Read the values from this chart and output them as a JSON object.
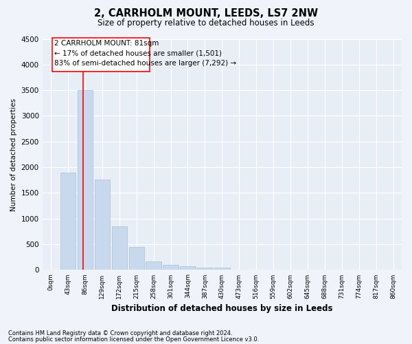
{
  "title1": "2, CARRHOLM MOUNT, LEEDS, LS7 2NW",
  "title2": "Size of property relative to detached houses in Leeds",
  "xlabel": "Distribution of detached houses by size in Leeds",
  "ylabel": "Number of detached properties",
  "bar_color": "#c8d9ee",
  "bar_edge_color": "#a8bfd8",
  "categories": [
    "0sqm",
    "43sqm",
    "86sqm",
    "129sqm",
    "172sqm",
    "215sqm",
    "258sqm",
    "301sqm",
    "344sqm",
    "387sqm",
    "430sqm",
    "473sqm",
    "516sqm",
    "559sqm",
    "602sqm",
    "645sqm",
    "688sqm",
    "731sqm",
    "774sqm",
    "817sqm",
    "860sqm"
  ],
  "values": [
    5,
    1900,
    3500,
    1760,
    855,
    450,
    160,
    100,
    70,
    52,
    42,
    8,
    5,
    4,
    3,
    2,
    2,
    2,
    2,
    2,
    2
  ],
  "ylim": [
    0,
    4500
  ],
  "yticks": [
    0,
    500,
    1000,
    1500,
    2000,
    2500,
    3000,
    3500,
    4000,
    4500
  ],
  "property_line_x": 1.88,
  "annotation_line1": "2 CARRHOLM MOUNT: 81sqm",
  "annotation_line2": "← 17% of detached houses are smaller (1,501)",
  "annotation_line3": "83% of semi-detached houses are larger (7,292) →",
  "footer1": "Contains HM Land Registry data © Crown copyright and database right 2024.",
  "footer2": "Contains public sector information licensed under the Open Government Licence v3.0.",
  "background_color": "#f0f4fa",
  "plot_bg_color": "#e8eef6"
}
